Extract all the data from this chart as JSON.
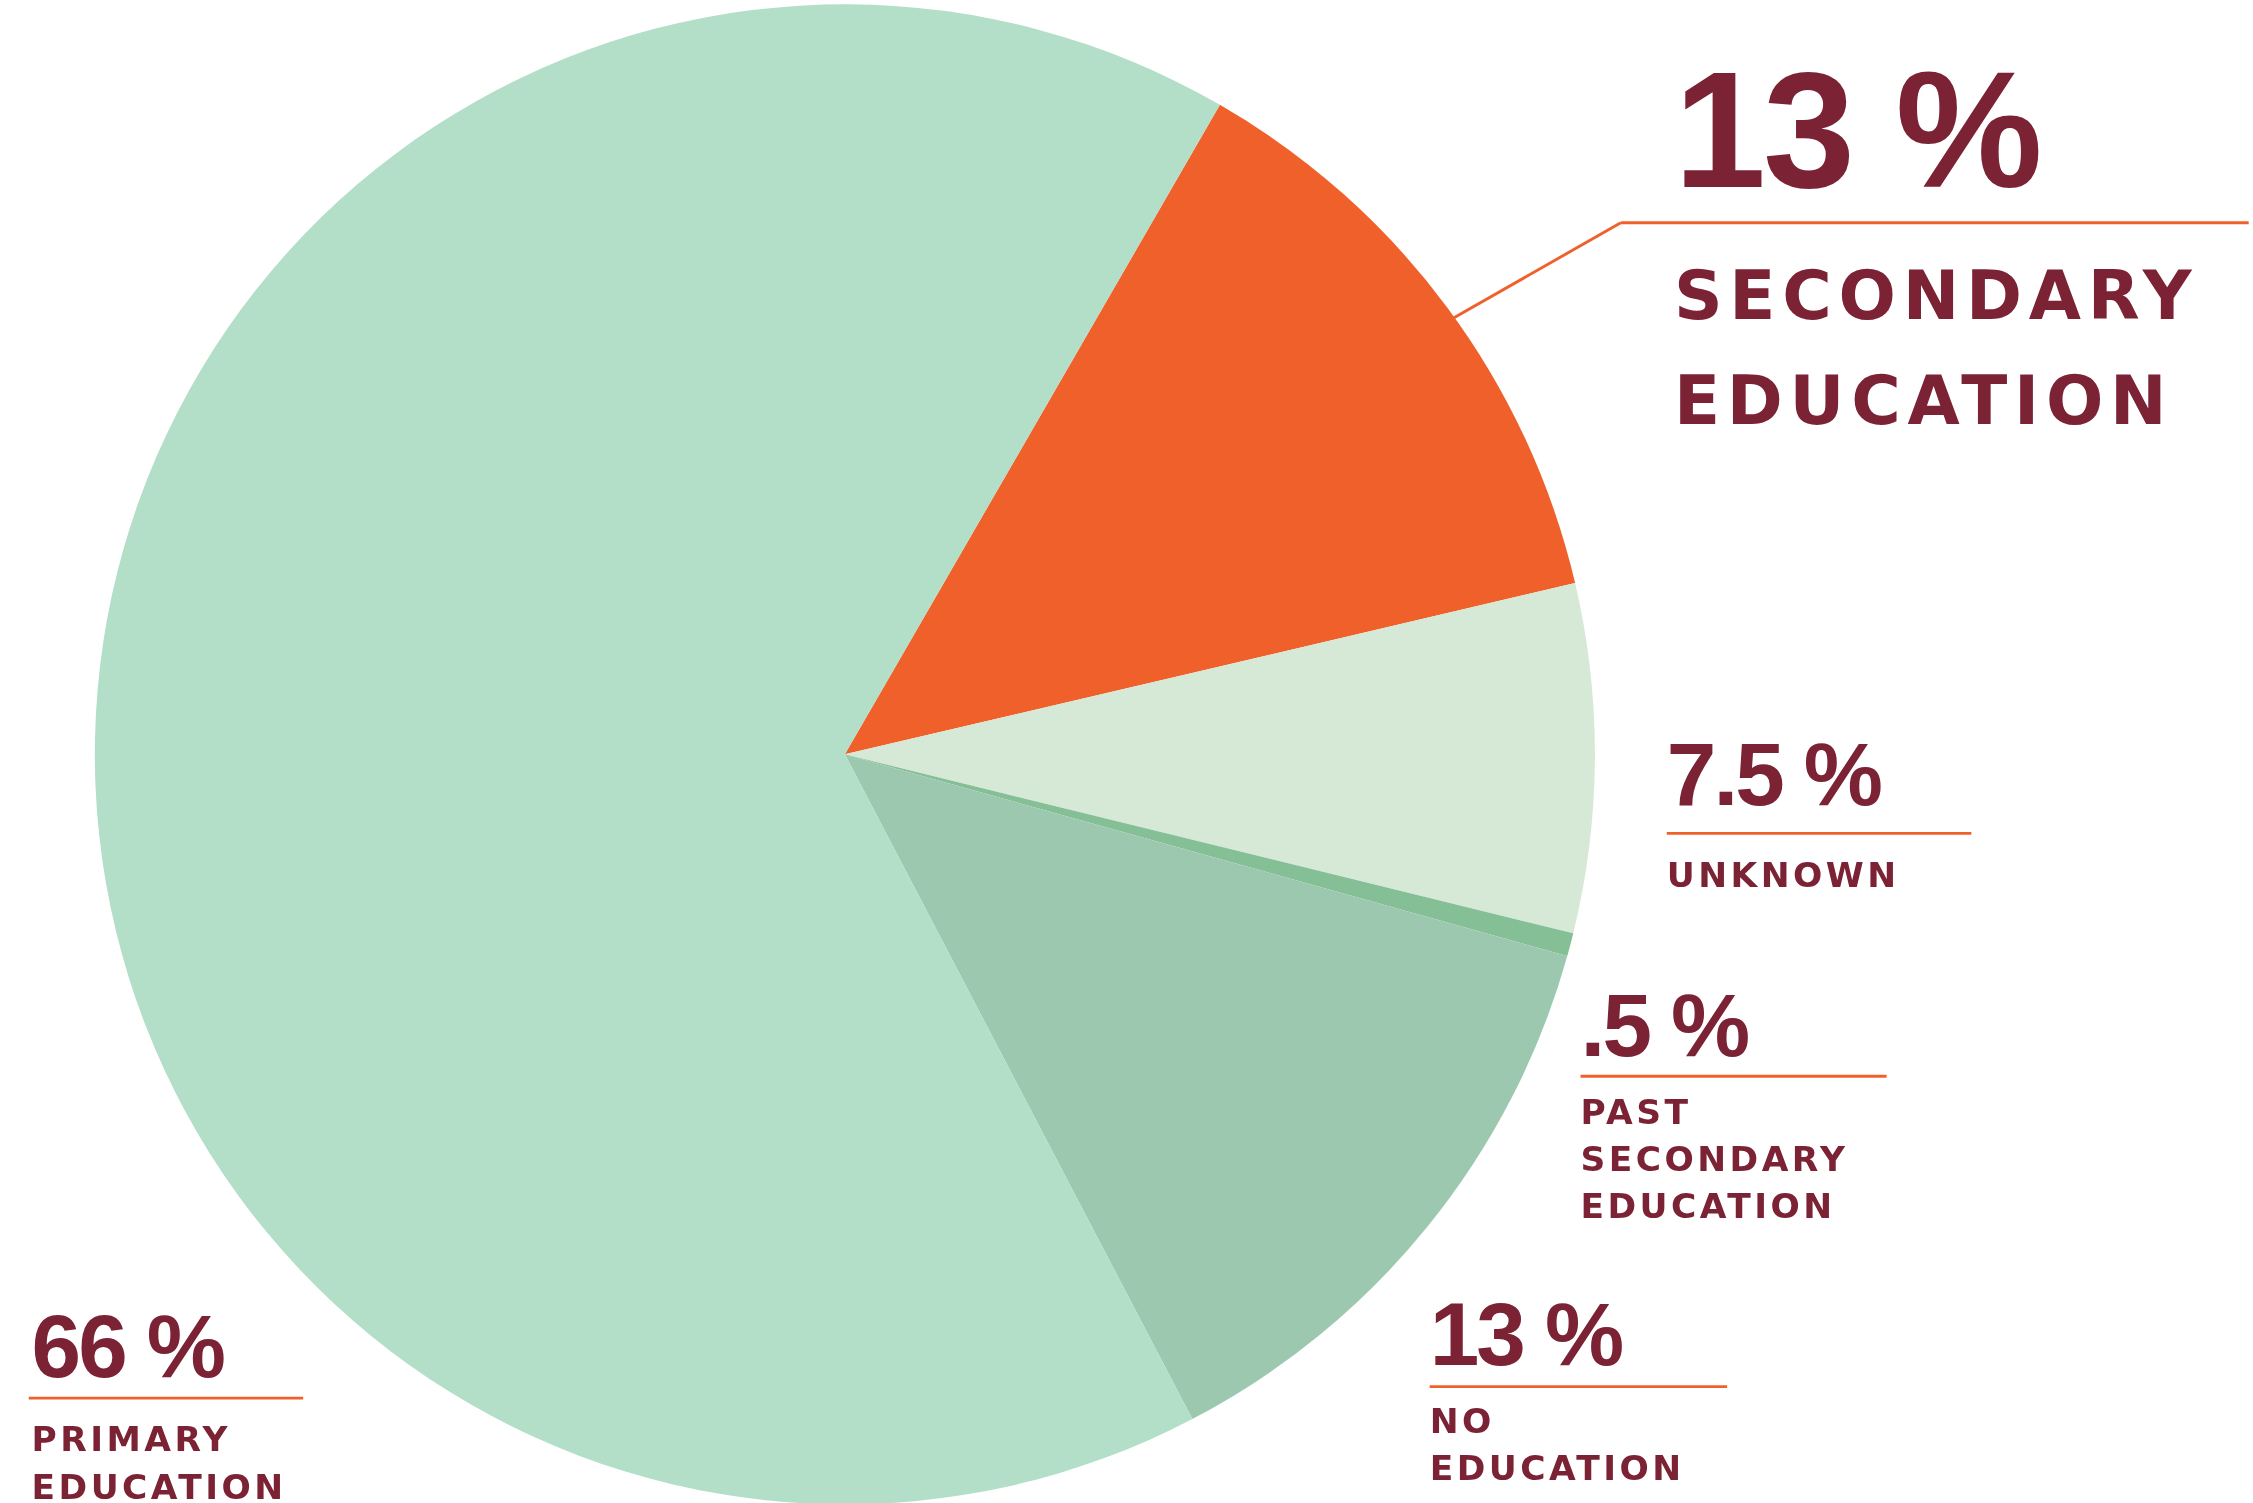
{
  "chart_data": {
    "type": "pie",
    "categories": [
      "SECONDARY EDUCATION",
      "UNKNOWN",
      "PAST SECONDARY EDUCATION",
      "NO EDUCATION",
      "PRIMARY EDUCATION"
    ],
    "values": [
      13,
      7.5,
      0.5,
      13,
      66
    ],
    "value_labels": [
      "13 %",
      "7.5 %",
      ".5 %",
      "13 %",
      "66 %"
    ],
    "colors": [
      "#f0602a",
      "#d6e8d6",
      "#84bf96",
      "#9dc8b0",
      "#b3dec8"
    ]
  }
}
